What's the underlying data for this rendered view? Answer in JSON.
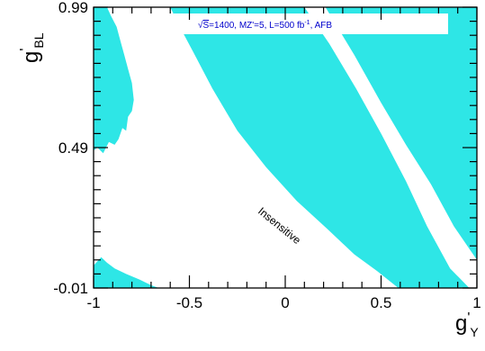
{
  "chart_data": {
    "type": "area",
    "x_axis": {
      "symbol": "g",
      "prime": "'",
      "subscript": "Y",
      "range": [
        -1,
        1
      ],
      "ticks": [
        -1,
        -0.5,
        0,
        0.5,
        1
      ],
      "tick_labels": [
        "-1",
        "-0.5",
        "0",
        "0.5",
        "1"
      ]
    },
    "y_axis": {
      "symbol": "g",
      "prime": "'",
      "subscript": "BL",
      "range": [
        -0.01,
        0.99
      ],
      "ticks": [
        -0.01,
        0.49,
        0.99
      ],
      "tick_labels": [
        "-0.01",
        "0.49",
        "0.99"
      ]
    },
    "legend": {
      "sqrt_symbol": "√",
      "sqrt_arg": "S",
      "text_a": "=1400, MZ'=5, L=500 fb",
      "superscript": "-1",
      "text_b": ", AFB",
      "placement": "top-right"
    },
    "annotation": "Insensitive",
    "colors": {
      "sensitive": "#2ee6e6",
      "band": "#ffffff",
      "frame": "#000000"
    },
    "series": [
      {
        "polygons": [
          [
            [
              -1.0,
              0.99
            ],
            [
              -0.93,
              0.99
            ],
            [
              -0.91,
              0.96
            ],
            [
              -0.88,
              0.92
            ],
            [
              -0.86,
              0.87
            ],
            [
              -0.84,
              0.82
            ],
            [
              -0.82,
              0.77
            ],
            [
              -0.8,
              0.72
            ],
            [
              -0.79,
              0.66
            ],
            [
              -0.8,
              0.62
            ],
            [
              -0.82,
              0.6
            ],
            [
              -0.83,
              0.55
            ],
            [
              -0.85,
              0.56
            ],
            [
              -0.87,
              0.52
            ],
            [
              -0.89,
              0.5
            ],
            [
              -0.92,
              0.51
            ],
            [
              -0.95,
              0.47
            ],
            [
              -0.98,
              0.49
            ],
            [
              -1.0,
              0.48
            ]
          ],
          [
            [
              -1.0,
              0.07
            ],
            [
              -0.96,
              0.1
            ],
            [
              -0.93,
              0.08
            ],
            [
              -0.89,
              0.06
            ],
            [
              -0.83,
              0.04
            ],
            [
              -0.76,
              0.02
            ],
            [
              -0.7,
              0.0
            ],
            [
              -0.66,
              -0.01
            ],
            [
              -1.0,
              -0.01
            ]
          ],
          [
            [
              -0.6,
              0.99
            ],
            [
              0.1,
              0.99
            ],
            [
              0.23,
              0.86
            ],
            [
              0.37,
              0.7
            ],
            [
              0.5,
              0.54
            ],
            [
              0.63,
              0.37
            ],
            [
              0.74,
              0.21
            ],
            [
              0.86,
              0.06
            ],
            [
              0.96,
              -0.01
            ],
            [
              0.59,
              -0.01
            ],
            [
              0.48,
              0.05
            ],
            [
              0.36,
              0.11
            ],
            [
              0.22,
              0.2
            ],
            [
              0.06,
              0.3
            ],
            [
              -0.1,
              0.42
            ],
            [
              -0.25,
              0.55
            ],
            [
              -0.38,
              0.7
            ],
            [
              -0.48,
              0.83
            ],
            [
              -0.55,
              0.92
            ]
          ],
          [
            [
              0.21,
              0.99
            ],
            [
              0.36,
              0.82
            ],
            [
              0.5,
              0.65
            ],
            [
              0.63,
              0.5
            ],
            [
              0.76,
              0.36
            ],
            [
              0.88,
              0.21
            ],
            [
              1.0,
              0.09
            ],
            [
              1.0,
              0.99
            ]
          ]
        ]
      }
    ]
  }
}
